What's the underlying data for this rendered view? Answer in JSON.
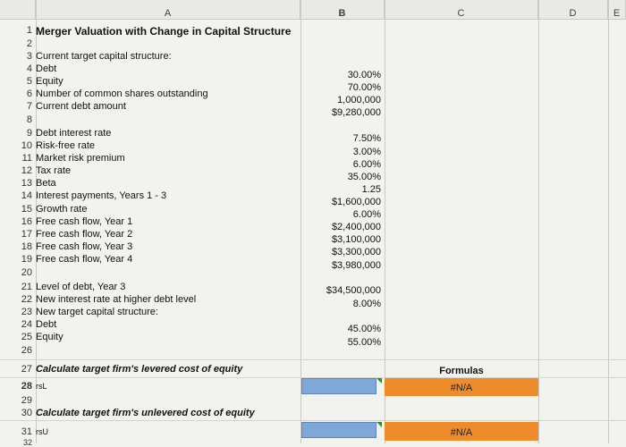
{
  "columns": {
    "a": "A",
    "b": "B",
    "c": "C",
    "d": "D",
    "e": "E"
  },
  "title": "Merger Valuation with Change in Capital Structure",
  "rows": [
    {
      "n": "1",
      "a": "",
      "b": ""
    },
    {
      "n": "2",
      "a": "",
      "b": ""
    },
    {
      "n": "3",
      "a": "Current target capital structure:",
      "b": ""
    },
    {
      "n": "4",
      "a": "Debt",
      "b": "30.00%"
    },
    {
      "n": "5",
      "a": "Equity",
      "b": "70.00%"
    },
    {
      "n": "6",
      "a": "Number of common shares outstanding",
      "b": "1,000,000"
    },
    {
      "n": "7",
      "a": "Current debt amount",
      "b": "$9,280,000"
    },
    {
      "n": "8",
      "a": "",
      "b": ""
    },
    {
      "n": "9",
      "a": "Debt interest rate",
      "b": "7.50%"
    },
    {
      "n": "10",
      "a": "Risk-free rate",
      "b": "3.00%"
    },
    {
      "n": "11",
      "a": "Market risk premium",
      "b": "6.00%"
    },
    {
      "n": "12",
      "a": "Tax rate",
      "b": "35.00%"
    },
    {
      "n": "13",
      "a": "Beta",
      "b": "1.25"
    },
    {
      "n": "14",
      "a": "Interest payments, Years 1 - 3",
      "b": "$1,600,000"
    },
    {
      "n": "15",
      "a": "Growth rate",
      "b": "6.00%"
    },
    {
      "n": "16",
      "a": "Free cash flow, Year 1",
      "b": "$2,400,000"
    },
    {
      "n": "17",
      "a": "Free cash flow, Year 2",
      "b": "$3,100,000"
    },
    {
      "n": "18",
      "a": "Free cash flow, Year 3",
      "b": "$3,300,000"
    },
    {
      "n": "19",
      "a": "Free cash flow, Year 4",
      "b": "$3,980,000"
    },
    {
      "n": "20",
      "a": "",
      "b": ""
    },
    {
      "n": "21",
      "a": "Level of debt, Year 3",
      "b": "$34,500,000"
    },
    {
      "n": "22",
      "a": "New interest rate at higher debt level",
      "b": "8.00%"
    },
    {
      "n": "23",
      "a": "New target capital structure:",
      "b": ""
    },
    {
      "n": "24",
      "a": "Debt",
      "b": "45.00%"
    },
    {
      "n": "25",
      "a": "Equity",
      "b": "55.00%"
    },
    {
      "n": "26",
      "a": "",
      "b": ""
    }
  ],
  "section27": {
    "n": "27",
    "label": "Calculate target firm's levered cost of equity",
    "formulas": "Formulas"
  },
  "row28": {
    "n": "28",
    "label": "rsL",
    "value": "#N/A"
  },
  "row29": {
    "n": "29"
  },
  "section30": {
    "n": "30",
    "label": "Calculate target firm's unlevered cost of equity"
  },
  "row31": {
    "n": "31",
    "label": "rsU",
    "value": "#N/A"
  },
  "row32": {
    "n": "32"
  },
  "colors": {
    "input_fill": "#7fa8d9",
    "formula_fill": "#ee8b2a"
  }
}
